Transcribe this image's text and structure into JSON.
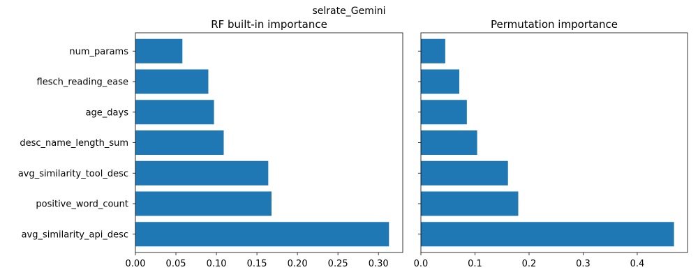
{
  "figure": {
    "suptitle": "selrate_Gemini"
  },
  "chart_data": [
    {
      "type": "bar",
      "orientation": "horizontal",
      "title": "RF built-in importance",
      "xlabel": "",
      "ylabel": "",
      "categories": [
        "avg_similarity_api_desc",
        "positive_word_count",
        "avg_similarity_tool_desc",
        "desc_name_length_sum",
        "age_days",
        "flesch_reading_ease",
        "num_params"
      ],
      "values": [
        0.313,
        0.168,
        0.164,
        0.109,
        0.097,
        0.09,
        0.058
      ],
      "xlim": [
        0,
        0.33
      ],
      "xticks": [
        0.0,
        0.05,
        0.1,
        0.15,
        0.2,
        0.25,
        0.3
      ],
      "xtick_labels": [
        "0.00",
        "0.05",
        "0.10",
        "0.15",
        "0.20",
        "0.25",
        "0.30"
      ],
      "show_ytick_labels": true,
      "bar_color": "#1f77b4",
      "grid": false
    },
    {
      "type": "bar",
      "orientation": "horizontal",
      "title": "Permutation importance",
      "xlabel": "",
      "ylabel": "",
      "categories": [
        "avg_similarity_api_desc",
        "positive_word_count",
        "avg_similarity_tool_desc",
        "desc_name_length_sum",
        "age_days",
        "flesch_reading_ease",
        "num_params"
      ],
      "values": [
        0.468,
        0.18,
        0.161,
        0.104,
        0.085,
        0.071,
        0.045
      ],
      "xlim": [
        0,
        0.493
      ],
      "xticks": [
        0.0,
        0.1,
        0.2,
        0.3,
        0.4
      ],
      "xtick_labels": [
        "0.0",
        "0.1",
        "0.2",
        "0.3",
        "0.4"
      ],
      "show_ytick_labels": false,
      "bar_color": "#1f77b4",
      "grid": false
    }
  ]
}
